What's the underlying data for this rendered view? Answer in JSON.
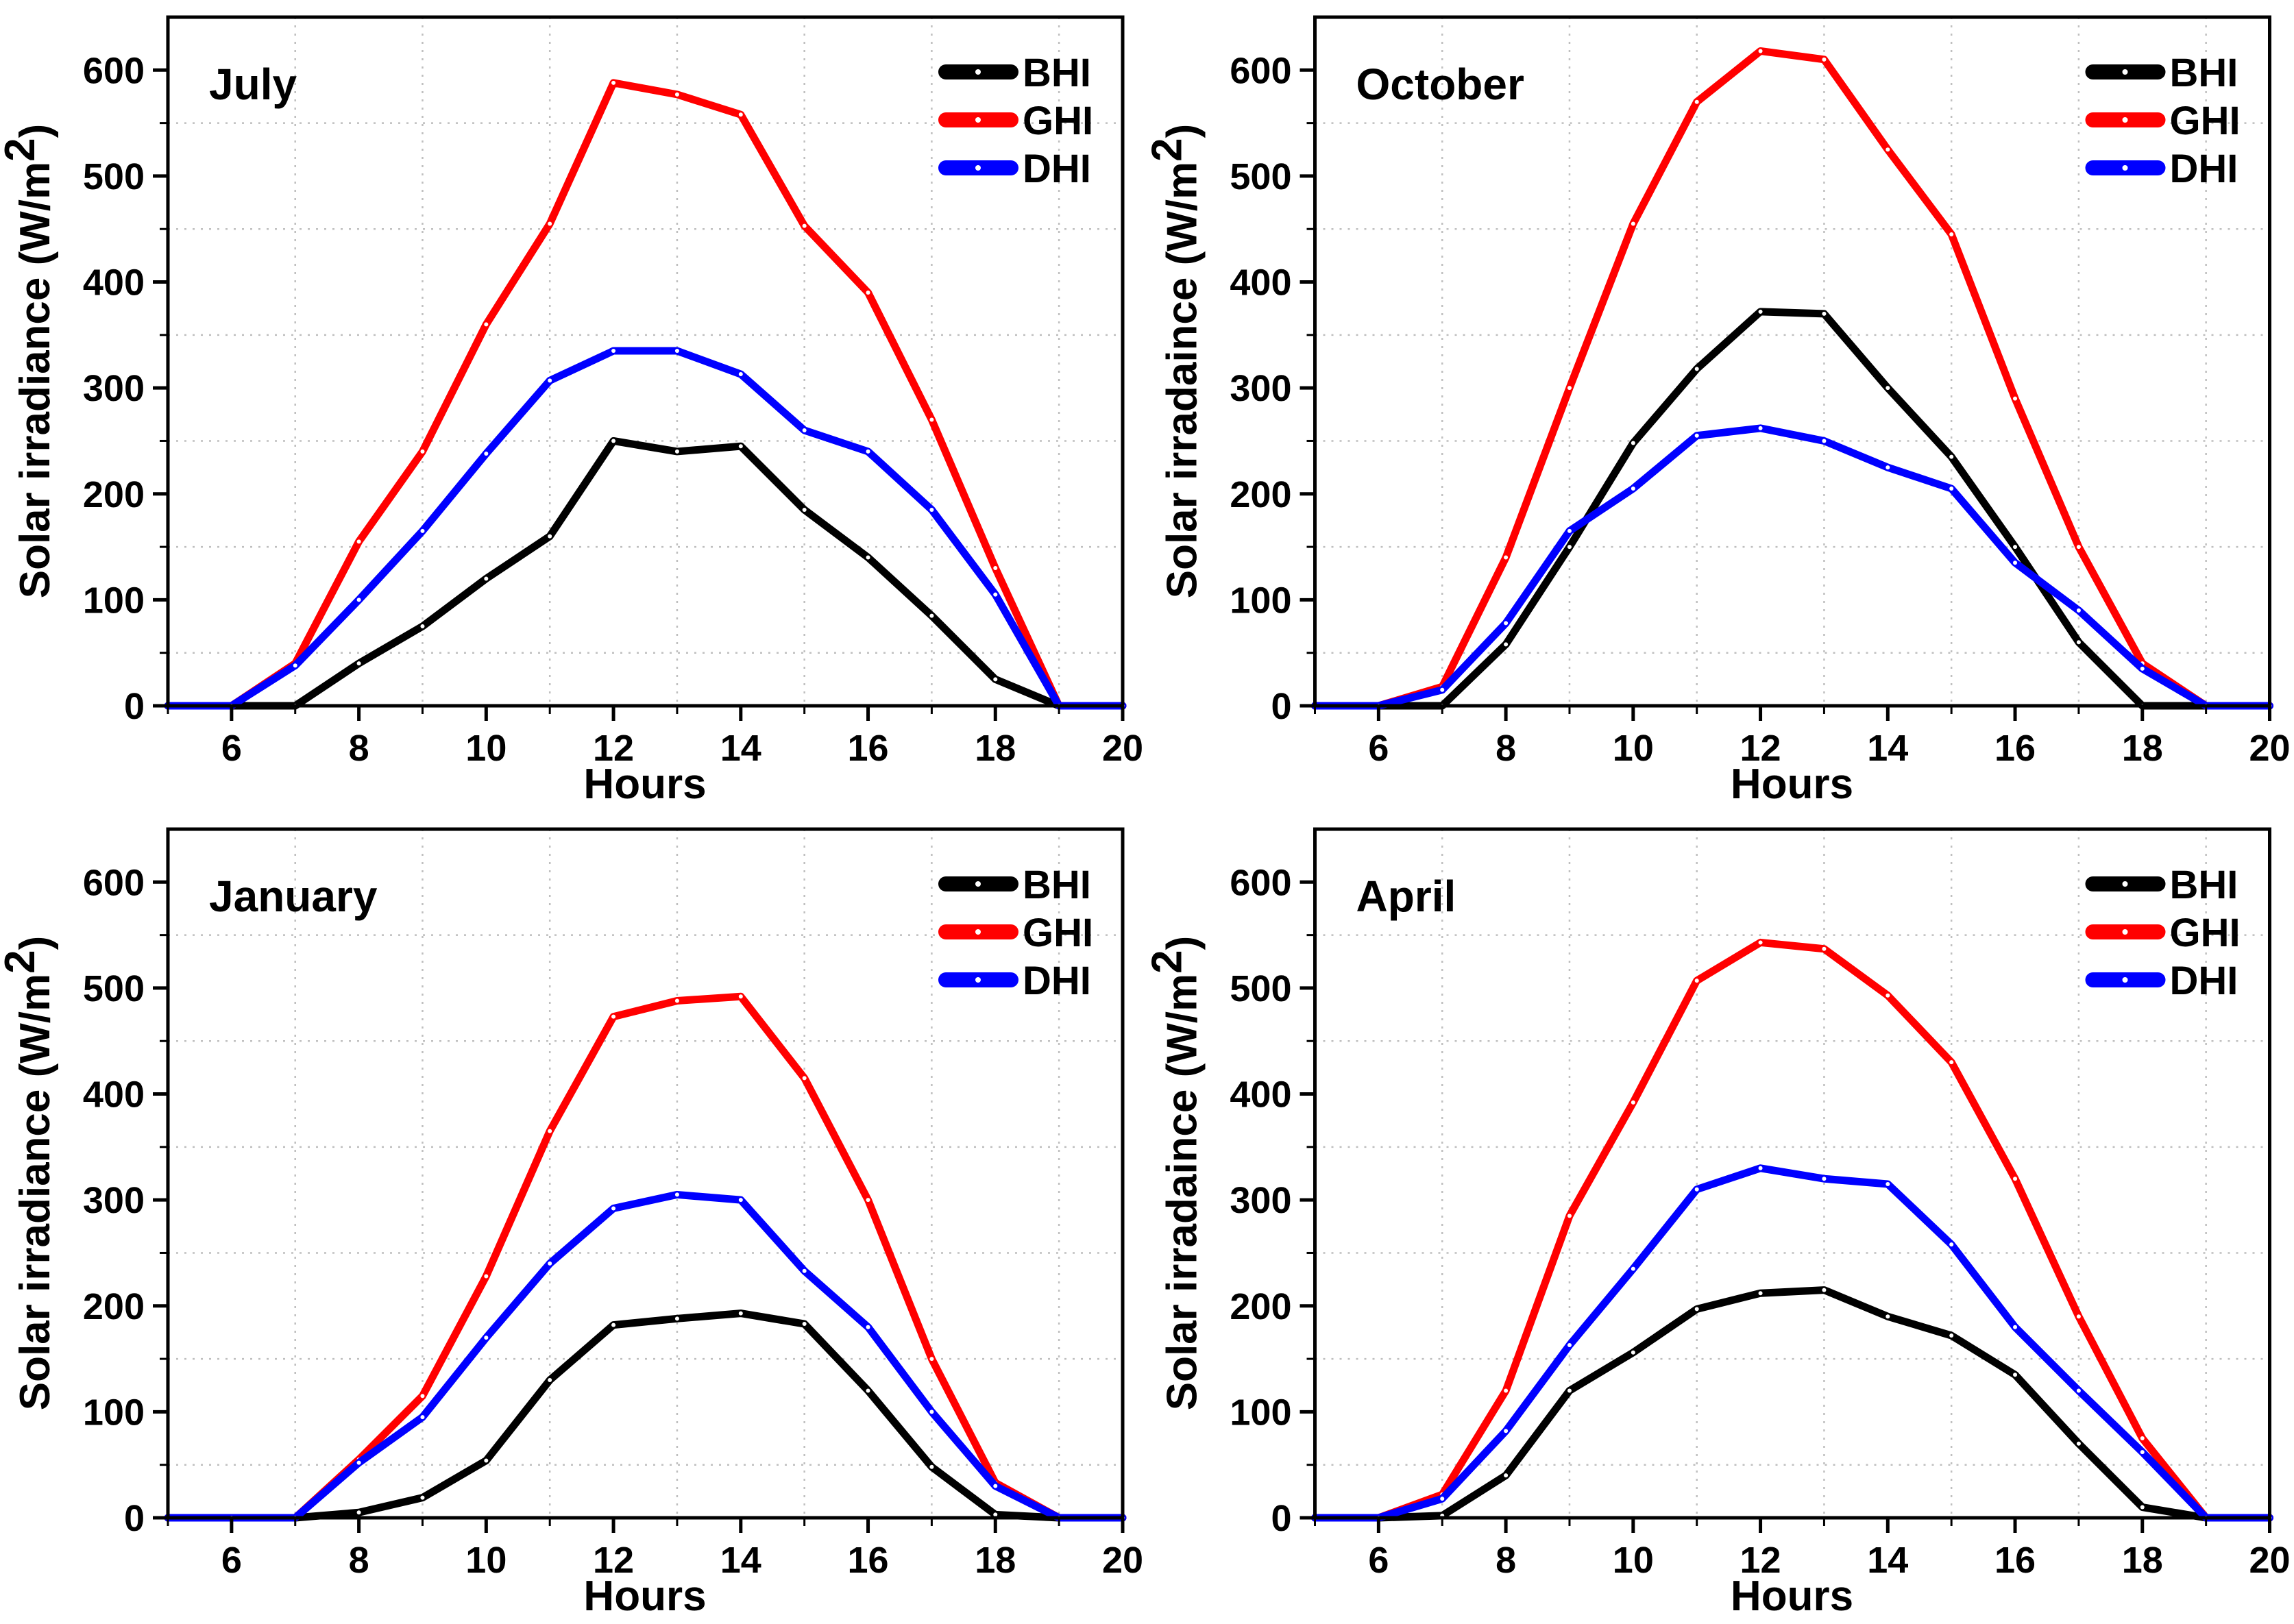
{
  "figure": {
    "background": "#ffffff",
    "grid_color": "#bfbfbf",
    "frame_color": "#000000",
    "series_colors": {
      "BHI": "#000000",
      "GHI": "#ff0000",
      "DHI": "#0000ff"
    },
    "marker_color": "#ffffff"
  },
  "chart_data": [
    {
      "type": "line",
      "title": "July",
      "xlabel": "Hours",
      "ylabel": "Solar irradiance (W/m2)",
      "ylabel_base": "Solar irradiance (W/m",
      "ylabel_sup": "2",
      "ylabel_close": ")",
      "xlim": [
        5,
        20
      ],
      "ylim": [
        0,
        650
      ],
      "xticks": [
        6,
        8,
        10,
        12,
        14,
        16,
        18,
        20
      ],
      "yticks": [
        0,
        100,
        200,
        300,
        400,
        500,
        600
      ],
      "x_minor_grid": [
        7,
        9,
        11,
        13,
        15,
        17,
        19
      ],
      "y_minor_grid": [
        50,
        150,
        250,
        350,
        450,
        550
      ],
      "legend_position": "top-right",
      "grid": "dashed-minor",
      "x": [
        5,
        6,
        7,
        8,
        9,
        10,
        11,
        12,
        13,
        14,
        15,
        16,
        17,
        18,
        19,
        20
      ],
      "series": [
        {
          "name": "BHI",
          "color": "#000000",
          "values": [
            0,
            0,
            0,
            40,
            75,
            120,
            160,
            250,
            240,
            245,
            185,
            140,
            85,
            25,
            0,
            0
          ]
        },
        {
          "name": "GHI",
          "color": "#ff0000",
          "values": [
            0,
            0,
            40,
            155,
            240,
            360,
            455,
            588,
            577,
            558,
            453,
            390,
            270,
            130,
            0,
            0
          ]
        },
        {
          "name": "DHI",
          "color": "#0000ff",
          "values": [
            0,
            0,
            38,
            100,
            165,
            238,
            307,
            335,
            335,
            313,
            260,
            240,
            185,
            105,
            0,
            0
          ]
        }
      ]
    },
    {
      "type": "line",
      "title": "October",
      "xlabel": "Hours",
      "ylabel": "Solar irradaince (W/m2)",
      "ylabel_base": "Solar irradaince (W/m",
      "ylabel_sup": "2",
      "ylabel_close": ")",
      "xlim": [
        5,
        20
      ],
      "ylim": [
        0,
        650
      ],
      "xticks": [
        6,
        8,
        10,
        12,
        14,
        16,
        18,
        20
      ],
      "yticks": [
        0,
        100,
        200,
        300,
        400,
        500,
        600
      ],
      "x_minor_grid": [
        7,
        9,
        11,
        13,
        15,
        17,
        19
      ],
      "y_minor_grid": [
        50,
        150,
        250,
        350,
        450,
        550
      ],
      "legend_position": "top-right",
      "grid": "dashed-minor",
      "x": [
        5,
        6,
        7,
        8,
        9,
        10,
        11,
        12,
        13,
        14,
        15,
        16,
        17,
        18,
        19,
        20
      ],
      "series": [
        {
          "name": "BHI",
          "color": "#000000",
          "values": [
            0,
            0,
            0,
            58,
            150,
            248,
            318,
            372,
            370,
            300,
            235,
            150,
            60,
            0,
            0,
            0
          ]
        },
        {
          "name": "GHI",
          "color": "#ff0000",
          "values": [
            0,
            0,
            18,
            140,
            300,
            455,
            570,
            618,
            610,
            525,
            445,
            290,
            150,
            40,
            0,
            0
          ]
        },
        {
          "name": "DHI",
          "color": "#0000ff",
          "values": [
            0,
            0,
            15,
            78,
            165,
            205,
            255,
            262,
            250,
            225,
            205,
            135,
            90,
            35,
            0,
            0
          ]
        }
      ]
    },
    {
      "type": "line",
      "title": "January",
      "xlabel": "Hours",
      "ylabel": "Solar irradiance (W/m2)",
      "ylabel_base": "Solar irradiance (W/m",
      "ylabel_sup": "2",
      "ylabel_close": ")",
      "xlim": [
        5,
        20
      ],
      "ylim": [
        0,
        650
      ],
      "xticks": [
        6,
        8,
        10,
        12,
        14,
        16,
        18,
        20
      ],
      "yticks": [
        0,
        100,
        200,
        300,
        400,
        500,
        600
      ],
      "x_minor_grid": [
        7,
        9,
        11,
        13,
        15,
        17,
        19
      ],
      "y_minor_grid": [
        50,
        150,
        250,
        350,
        450,
        550
      ],
      "legend_position": "top-right",
      "grid": "dashed-minor",
      "x": [
        5,
        6,
        7,
        8,
        9,
        10,
        11,
        12,
        13,
        14,
        15,
        16,
        17,
        18,
        19,
        20
      ],
      "series": [
        {
          "name": "BHI",
          "color": "#000000",
          "values": [
            0,
            0,
            0,
            5,
            19,
            54,
            130,
            182,
            188,
            193,
            183,
            120,
            48,
            3,
            0,
            0
          ]
        },
        {
          "name": "GHI",
          "color": "#ff0000",
          "values": [
            0,
            0,
            0,
            55,
            115,
            228,
            365,
            473,
            488,
            492,
            415,
            300,
            150,
            33,
            0,
            0
          ]
        },
        {
          "name": "DHI",
          "color": "#0000ff",
          "values": [
            0,
            0,
            0,
            52,
            95,
            170,
            240,
            292,
            305,
            300,
            233,
            180,
            100,
            30,
            0,
            0
          ]
        }
      ]
    },
    {
      "type": "line",
      "title": "April",
      "xlabel": "Hours",
      "ylabel": "Solar irradaince (W/m2)",
      "ylabel_base": "Solar irradaince (W/m",
      "ylabel_sup": "2",
      "ylabel_close": ")",
      "xlim": [
        5,
        20
      ],
      "ylim": [
        0,
        650
      ],
      "xticks": [
        6,
        8,
        10,
        12,
        14,
        16,
        18,
        20
      ],
      "yticks": [
        0,
        100,
        200,
        300,
        400,
        500,
        600
      ],
      "x_minor_grid": [
        7,
        9,
        11,
        13,
        15,
        17,
        19
      ],
      "y_minor_grid": [
        50,
        150,
        250,
        350,
        450,
        550
      ],
      "legend_position": "top-right",
      "grid": "dashed-minor",
      "x": [
        5,
        6,
        7,
        8,
        9,
        10,
        11,
        12,
        13,
        14,
        15,
        16,
        17,
        18,
        19,
        20
      ],
      "series": [
        {
          "name": "BHI",
          "color": "#000000",
          "values": [
            0,
            0,
            2,
            40,
            120,
            156,
            197,
            212,
            215,
            190,
            172,
            135,
            70,
            10,
            0,
            0
          ]
        },
        {
          "name": "GHI",
          "color": "#ff0000",
          "values": [
            0,
            0,
            22,
            120,
            285,
            392,
            507,
            543,
            537,
            493,
            430,
            320,
            190,
            75,
            0,
            0
          ]
        },
        {
          "name": "DHI",
          "color": "#0000ff",
          "values": [
            0,
            0,
            18,
            82,
            163,
            235,
            310,
            330,
            320,
            315,
            258,
            180,
            120,
            62,
            0,
            0
          ]
        }
      ]
    }
  ]
}
